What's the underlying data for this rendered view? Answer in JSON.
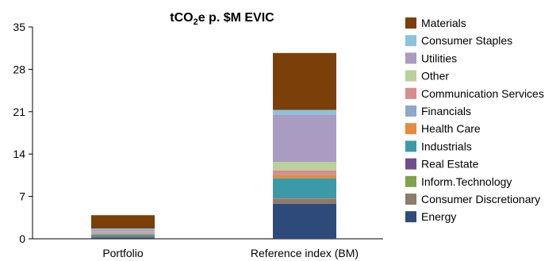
{
  "chart_data": {
    "type": "bar",
    "stacked": true,
    "title": {
      "main": "tCO",
      "sub": "2",
      "rest": "e p. $M EVIC"
    },
    "categories": [
      "Portfolio",
      "Reference index (BM)"
    ],
    "ylim": [
      0,
      35
    ],
    "yticks": [
      "0",
      "7",
      "14",
      "21",
      "28",
      "35"
    ],
    "grid": false,
    "legend_position": "right",
    "series": [
      {
        "name": "Energy",
        "color": "#2E4A7A",
        "values": [
          0.2,
          5.8
        ]
      },
      {
        "name": "Consumer Discretionary",
        "color": "#8C7B6B",
        "values": [
          0.2,
          0.8
        ]
      },
      {
        "name": "Inform.Technology",
        "color": "#7FA24A",
        "values": [
          0.0,
          0.1
        ]
      },
      {
        "name": "Real Estate",
        "color": "#6E4E8C",
        "values": [
          0.0,
          0.1
        ]
      },
      {
        "name": "Industrials",
        "color": "#3A9AAA",
        "values": [
          0.3,
          3.2
        ]
      },
      {
        "name": "Health Care",
        "color": "#E68A3C",
        "values": [
          0.1,
          0.6
        ]
      },
      {
        "name": "Financials",
        "color": "#8EA7CC",
        "values": [
          0.1,
          0.1
        ]
      },
      {
        "name": "Communication Services",
        "color": "#D98C8C",
        "values": [
          0.2,
          0.6
        ]
      },
      {
        "name": "Other",
        "color": "#B9D19A",
        "values": [
          0.1,
          1.4
        ]
      },
      {
        "name": "Utilities",
        "color": "#A99BC2",
        "values": [
          0.3,
          7.8
        ]
      },
      {
        "name": "Consumer Staples",
        "color": "#8CC3DA",
        "values": [
          0.2,
          0.8
        ]
      },
      {
        "name": "Materials",
        "color": "#7B3F0A",
        "values": [
          2.2,
          9.4
        ]
      }
    ]
  }
}
